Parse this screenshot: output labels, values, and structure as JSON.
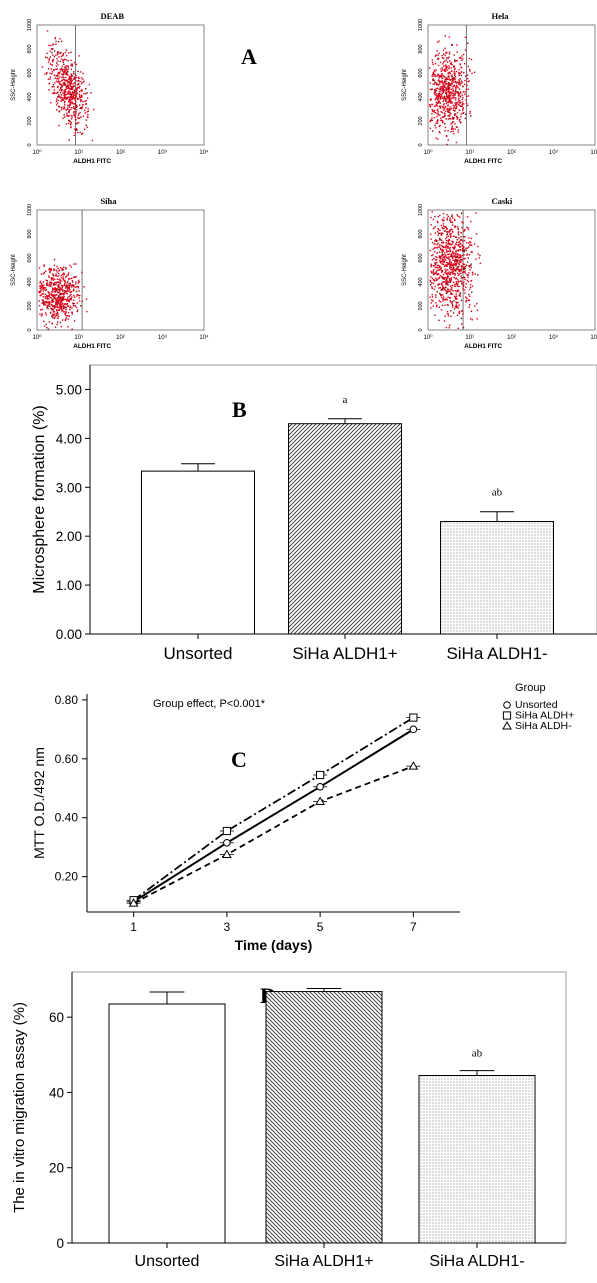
{
  "panel_labels": {
    "a": "A",
    "b": "B",
    "c": "C",
    "d": "D"
  },
  "flow": {
    "ylabel": "SSC-Height",
    "xlabel": "ALDH1 FITC",
    "yticks": [
      "0",
      "200",
      "400",
      "600",
      "800",
      "1000"
    ],
    "xticks": [
      "10⁰",
      "10¹",
      "10²",
      "10³",
      "10⁴"
    ],
    "plots": [
      {
        "title": "DEAB"
      },
      {
        "title": "Hela"
      },
      {
        "title": "Siha"
      },
      {
        "title": "Caski"
      }
    ]
  },
  "chart_data": [
    {
      "type": "bar",
      "panel": "B",
      "title": "",
      "ylabel": "Microsphere formation (%)",
      "xlabel": "",
      "categories": [
        "Unsorted",
        "SiHa ALDH1+",
        "SiHa ALDH1-"
      ],
      "values": [
        3.33,
        4.3,
        2.3
      ],
      "errors": [
        0.15,
        0.1,
        0.2
      ],
      "annotations": [
        "",
        "a",
        "ab"
      ],
      "ylim": [
        0,
        5.5
      ],
      "yticks": [
        "0.00",
        "1.00",
        "2.00",
        "3.00",
        "4.00",
        "5.00"
      ],
      "patterns": [
        "none",
        "diagonal",
        "dots"
      ]
    },
    {
      "type": "line",
      "panel": "C",
      "annotation": "Group effect, P<0.001*",
      "ylabel": "MTT O.D./492 nm",
      "xlabel": "Time (days)",
      "x": [
        1,
        3,
        5,
        7
      ],
      "xticks": [
        "1",
        "3",
        "5",
        "7"
      ],
      "xlim": [
        0,
        8
      ],
      "ylim": [
        0.08,
        0.82
      ],
      "yticks": [
        "0.20",
        "0.40",
        "0.60",
        "0.80"
      ],
      "legend_title": "Group",
      "legend_position": "top-right outside",
      "series": [
        {
          "name": "Unsorted",
          "marker": "circle",
          "dash": "solid",
          "values": [
            0.115,
            0.315,
            0.505,
            0.7
          ]
        },
        {
          "name": "SiHa ALDH+",
          "marker": "square",
          "dash": "dashdot",
          "values": [
            0.12,
            0.355,
            0.545,
            0.74
          ]
        },
        {
          "name": "SiHa ALDH-",
          "marker": "triangle",
          "dash": "dashed",
          "values": [
            0.11,
            0.275,
            0.455,
            0.575
          ]
        }
      ]
    },
    {
      "type": "bar",
      "panel": "D",
      "title": "",
      "ylabel": "The in vitro migration assay (%)",
      "xlabel": "",
      "categories": [
        "Unsorted",
        "SiHa ALDH1+",
        "SiHa ALDH1-"
      ],
      "values": [
        63.5,
        66.8,
        44.5
      ],
      "errors": [
        3.2,
        0.8,
        1.3
      ],
      "annotations": [
        "",
        "",
        "ab"
      ],
      "ylim": [
        0,
        72
      ],
      "yticks": [
        "0",
        "20",
        "40",
        "60"
      ],
      "patterns": [
        "none",
        "diagonal",
        "dots"
      ]
    }
  ]
}
